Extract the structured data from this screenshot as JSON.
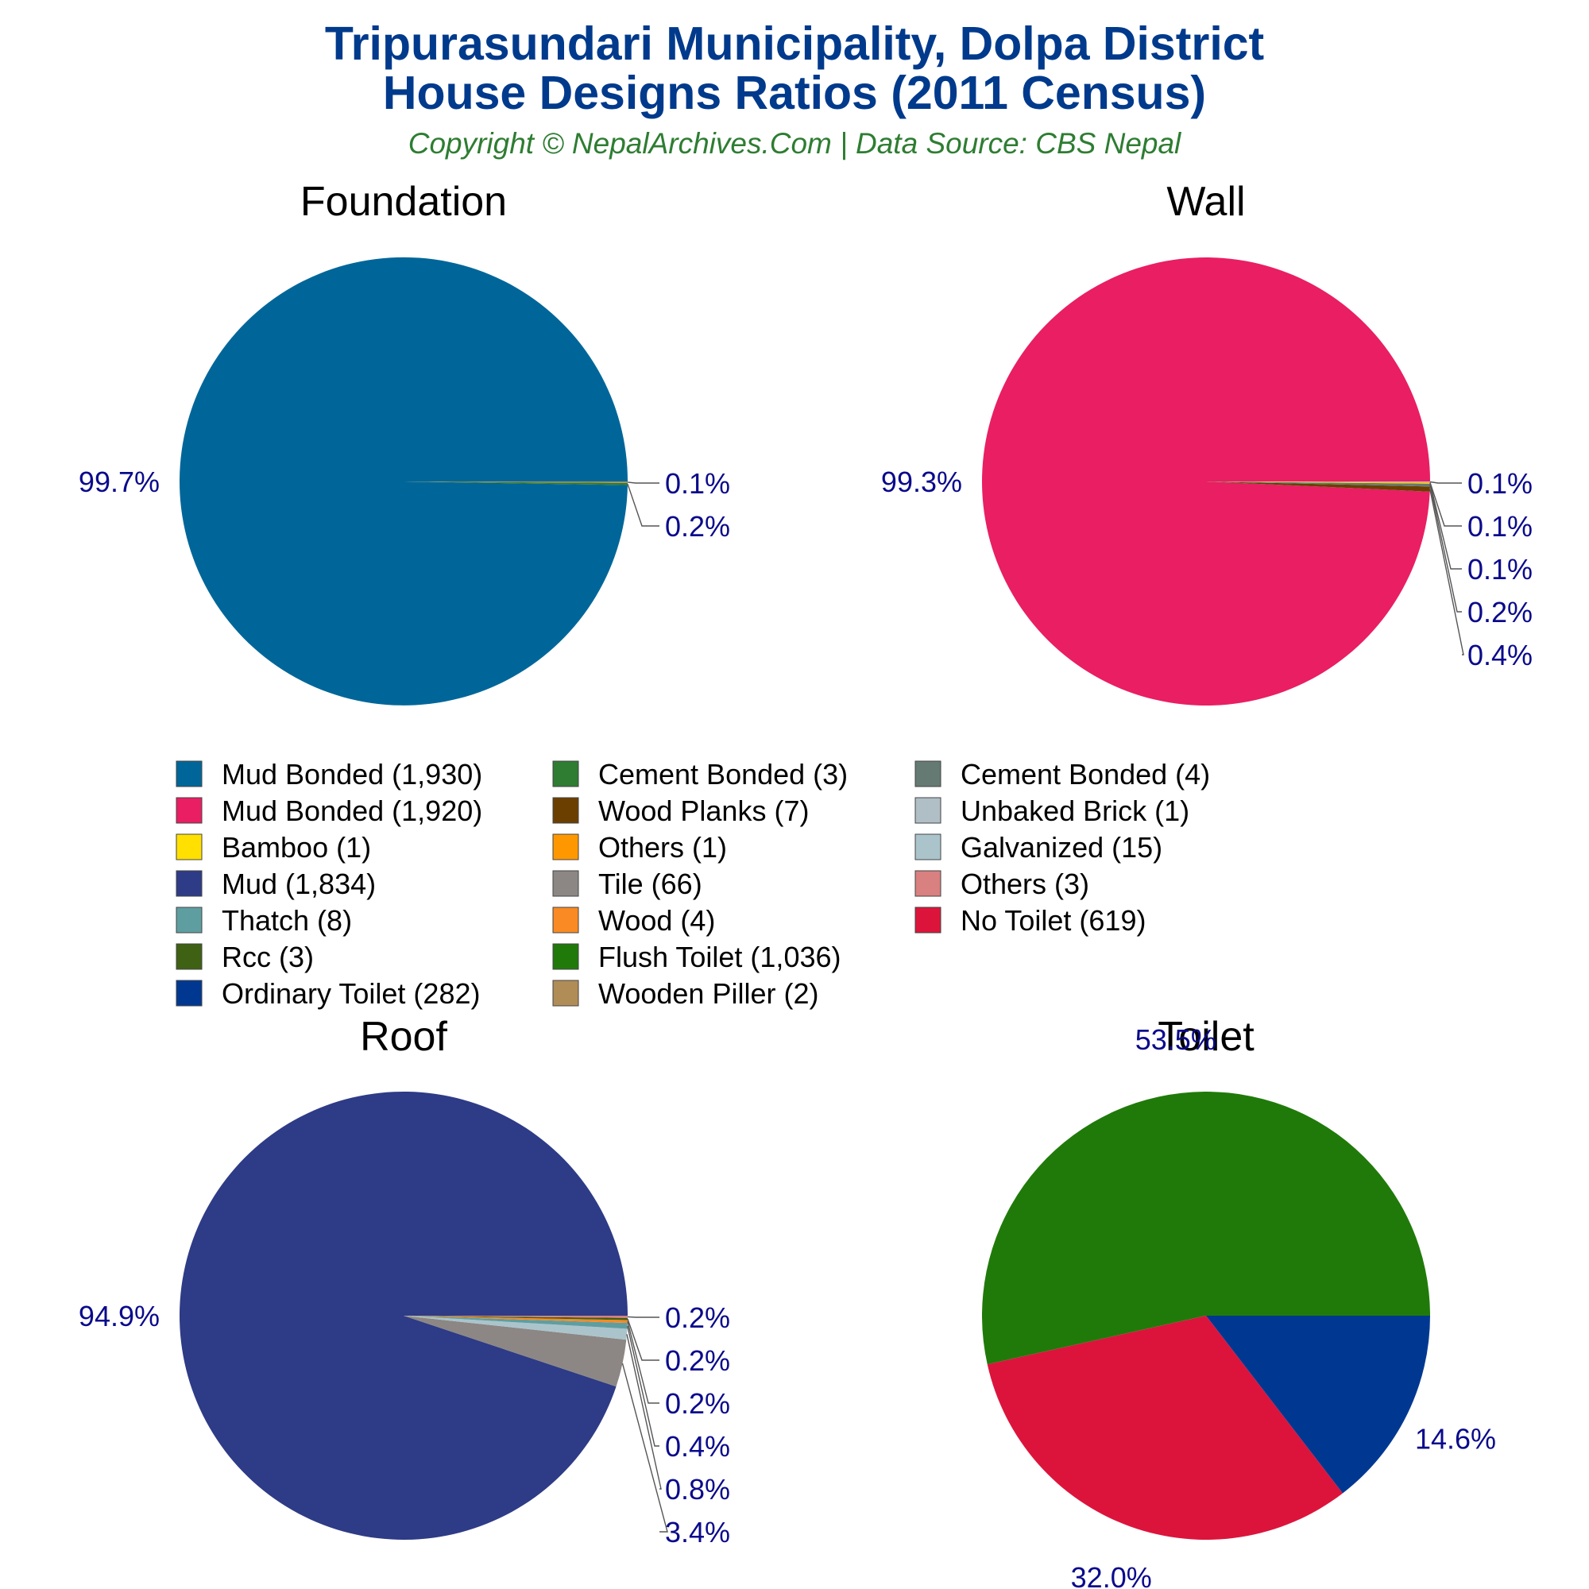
{
  "header": {
    "title_line1": "Tripurasundari Municipality, Dolpa District",
    "title_line2": "House Designs Ratios (2011 Census)",
    "subtitle": "Copyright © NepalArchives.Com | Data Source: CBS Nepal"
  },
  "colors": {
    "title": "#003a8c",
    "subtitle": "#2e7d32",
    "label": "#0a0a8c"
  },
  "chart_data": [
    {
      "type": "pie",
      "title": "Foundation",
      "slices": [
        {
          "label": "Mud Bonded (1,930)",
          "value": 1930,
          "pct": "99.7%",
          "color": "#006699"
        },
        {
          "label": "Cement Bonded (3)",
          "value": 3,
          "pct": "0.2%",
          "color": "#2e7d32"
        },
        {
          "label": "Wooden Piller (2)",
          "value": 2,
          "pct": "0.1%",
          "color": "#b08d57"
        }
      ]
    },
    {
      "type": "pie",
      "title": "Wall",
      "slices": [
        {
          "label": "Mud Bonded (1,920)",
          "value": 1920,
          "pct": "99.3%",
          "color": "#e91e63"
        },
        {
          "label": "Wood Planks (7)",
          "value": 7,
          "pct": "0.4%",
          "color": "#6b3f00"
        },
        {
          "label": "Cement Bonded (4)",
          "value": 4,
          "pct": "0.2%",
          "color": "#657a72"
        },
        {
          "label": "Bamboo (1)",
          "value": 1,
          "pct": "0.1%",
          "color": "#ffe000"
        },
        {
          "label": "Others (1)",
          "value": 1,
          "pct": "0.1%",
          "color": "#ff9800"
        },
        {
          "label": "Unbaked Brick (1)",
          "value": 1,
          "pct": "0.1%",
          "color": "#b0bec5"
        }
      ]
    },
    {
      "type": "pie",
      "title": "Roof",
      "slices": [
        {
          "label": "Mud (1,834)",
          "value": 1834,
          "pct": "94.9%",
          "color": "#2e3b86"
        },
        {
          "label": "Tile (66)",
          "value": 66,
          "pct": "3.4%",
          "color": "#8c8784"
        },
        {
          "label": "Galvanized (15)",
          "value": 15,
          "pct": "0.8%",
          "color": "#abc4cc"
        },
        {
          "label": "Thatch (8)",
          "value": 8,
          "pct": "0.4%",
          "color": "#5f9ea0"
        },
        {
          "label": "Wood (4)",
          "value": 4,
          "pct": "0.2%",
          "color": "#f98a24"
        },
        {
          "label": "Rcc (3)",
          "value": 3,
          "pct": "0.2%",
          "color": "#3f6113"
        },
        {
          "label": "Others (3)",
          "value": 3,
          "pct": "0.2%",
          "color": "#d98080"
        }
      ]
    },
    {
      "type": "pie",
      "title": "Toilet",
      "slices": [
        {
          "label": "Flush Toilet (1,036)",
          "value": 1036,
          "pct": "53.5%",
          "color": "#207a0a"
        },
        {
          "label": "No Toilet (619)",
          "value": 619,
          "pct": "32.0%",
          "color": "#dc143c"
        },
        {
          "label": "Ordinary Toilet (282)",
          "value": 282,
          "pct": "14.6%",
          "color": "#003891"
        }
      ]
    }
  ],
  "legend": {
    "placement": "center",
    "items": [
      {
        "label": "Mud Bonded (1,930)",
        "color": "#006699"
      },
      {
        "label": "Mud Bonded (1,920)",
        "color": "#e91e63"
      },
      {
        "label": "Bamboo (1)",
        "color": "#ffe000"
      },
      {
        "label": "Mud (1,834)",
        "color": "#2e3b86"
      },
      {
        "label": "Thatch (8)",
        "color": "#5f9ea0"
      },
      {
        "label": "Rcc (3)",
        "color": "#3f6113"
      },
      {
        "label": "Ordinary Toilet (282)",
        "color": "#003891"
      },
      {
        "label": "Cement Bonded (3)",
        "color": "#2e7d32"
      },
      {
        "label": "Wood Planks (7)",
        "color": "#6b3f00"
      },
      {
        "label": "Others (1)",
        "color": "#ff9800"
      },
      {
        "label": "Tile (66)",
        "color": "#8c8784"
      },
      {
        "label": "Wood (4)",
        "color": "#f98a24"
      },
      {
        "label": "Flush Toilet (1,036)",
        "color": "#207a0a"
      },
      {
        "label": "Wooden Piller (2)",
        "color": "#b08d57"
      },
      {
        "label": "Cement Bonded (4)",
        "color": "#657a72"
      },
      {
        "label": "Unbaked Brick (1)",
        "color": "#b0bec5"
      },
      {
        "label": "Galvanized (15)",
        "color": "#abc4cc"
      },
      {
        "label": "Others (3)",
        "color": "#d98080"
      },
      {
        "label": "No Toilet (619)",
        "color": "#dc143c"
      }
    ]
  }
}
